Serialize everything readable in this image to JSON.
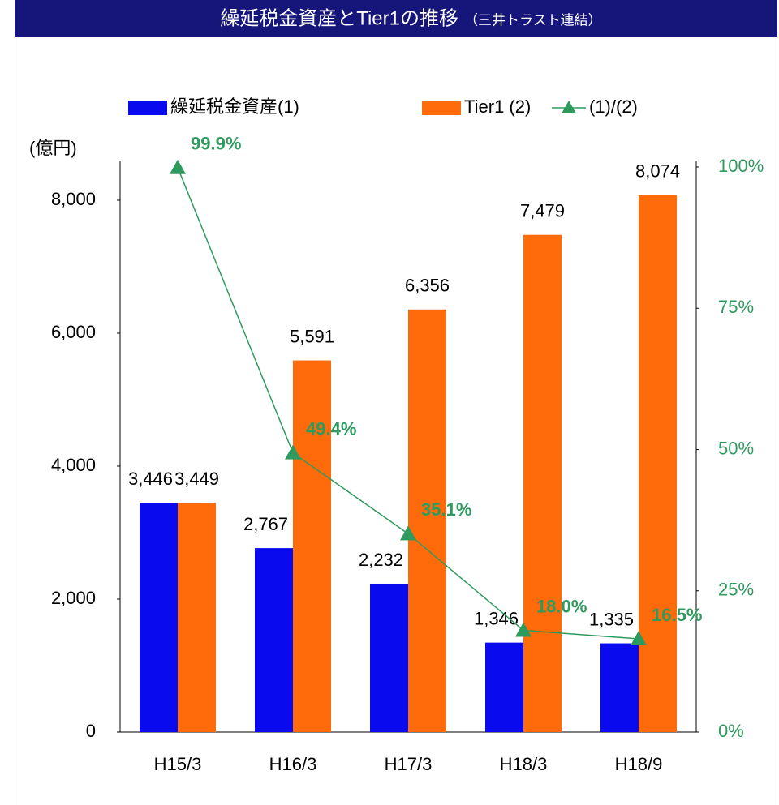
{
  "chart_data": {
    "type": "bar",
    "title": "繰延税金資産とTier1の推移",
    "subtitle": "（三井トラスト連結）",
    "y_label": "(億円)",
    "categories": [
      "H15/3",
      "H16/3",
      "H17/3",
      "H18/3",
      "H18/9"
    ],
    "series": [
      {
        "name": "繰延税金資産(1)",
        "type": "bar",
        "color": "#0a0aee",
        "values": [
          3446,
          2767,
          2232,
          1346,
          1335
        ],
        "value_labels": [
          "3,446",
          "2,767",
          "2,232",
          "1,346",
          "1,335"
        ]
      },
      {
        "name": "Tier1 (2)",
        "type": "bar",
        "color": "#ff6a0a",
        "values": [
          3449,
          5591,
          6356,
          7479,
          8074
        ],
        "value_labels": [
          "3,449",
          "5,591",
          "6,356",
          "7,479",
          "8,074"
        ]
      },
      {
        "name": "(1)/(2)",
        "type": "line",
        "axis": "y2",
        "color": "#2e9a5e",
        "values": [
          99.9,
          49.4,
          35.1,
          18.0,
          16.5
        ],
        "value_labels": [
          "99.9%",
          "49.4%",
          "35.1%",
          "18.0%",
          "16.5%"
        ]
      }
    ],
    "ylim": [
      0,
      8500
    ],
    "yticks": [
      0,
      {
        "value": 2000,
        "label": "2,000"
      },
      {
        "value": 4000,
        "label": "4,000"
      },
      {
        "value": 6000,
        "label": "6,000"
      },
      {
        "value": 8000,
        "label": "8,000"
      }
    ],
    "y2lim": [
      0,
      100
    ],
    "y2ticks": [
      {
        "value": 0,
        "label": "0%"
      },
      {
        "value": 25,
        "label": "25%"
      },
      {
        "value": 50,
        "label": "50%"
      },
      {
        "value": 75,
        "label": "75%"
      },
      {
        "value": 100,
        "label": "100%"
      }
    ],
    "legend": "top"
  }
}
